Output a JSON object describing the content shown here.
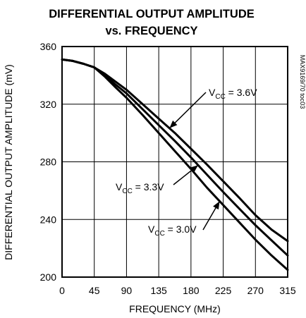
{
  "chart_data": {
    "type": "line",
    "title": "DIFFERENTIAL OUTPUT AMPLITUDE",
    "subtitle": "vs. FREQUENCY",
    "xlabel": "FREQUENCY (MHz)",
    "ylabel": "DIFFERENTIAL OUTPUT AMPLITUDE (mV)",
    "xlim": [
      0,
      315
    ],
    "ylim": [
      200,
      360
    ],
    "x_ticks": [
      "0",
      "45",
      "90",
      "135",
      "180",
      "225",
      "270",
      "315"
    ],
    "x_tick_values": [
      0,
      45,
      90,
      135,
      180,
      225,
      270,
      315
    ],
    "y_ticks": [
      "200",
      "240",
      "280",
      "320",
      "360"
    ],
    "y_tick_values": [
      200,
      240,
      280,
      320,
      360
    ],
    "grid": true,
    "side_text": "MAX9169/70 toc03",
    "series": [
      {
        "name": "VCC = 3.6V",
        "x": [
          0,
          15,
          30,
          45,
          60,
          75,
          90,
          112.5,
          135,
          157.5,
          180,
          202.5,
          225,
          247.5,
          270,
          292.5,
          315
        ],
        "y": [
          351,
          350,
          348,
          345.5,
          341,
          335.5,
          330,
          320,
          310,
          300,
          289,
          278,
          266.5,
          255,
          243,
          233,
          225
        ]
      },
      {
        "name": "VCC = 3.3V",
        "x": [
          0,
          15,
          30,
          45,
          60,
          75,
          90,
          112.5,
          135,
          157.5,
          180,
          202.5,
          225,
          247.5,
          270,
          292.5,
          315
        ],
        "y": [
          351,
          350,
          348,
          345.5,
          340,
          333.5,
          327.5,
          316.5,
          305.5,
          294.5,
          283,
          271,
          259,
          247.5,
          236,
          225.5,
          215
        ]
      },
      {
        "name": "VCC = 3.0V",
        "x": [
          0,
          15,
          30,
          45,
          60,
          75,
          90,
          112.5,
          135,
          157.5,
          180,
          202.5,
          225,
          247.5,
          270,
          292.5,
          315
        ],
        "y": [
          351,
          350,
          348,
          345.5,
          339,
          331.5,
          324.5,
          312.5,
          300,
          287.5,
          275,
          262,
          250,
          238,
          226,
          215,
          205
        ]
      }
    ],
    "annotations": [
      {
        "prefix": "V",
        "sub": "CC",
        "suffix": " = 3.6V",
        "series": 0
      },
      {
        "prefix": "V",
        "sub": "CC",
        "suffix": " = 3.3V",
        "series": 1
      },
      {
        "prefix": "V",
        "sub": "CC",
        "suffix": " = 3.0V",
        "series": 2
      }
    ]
  }
}
